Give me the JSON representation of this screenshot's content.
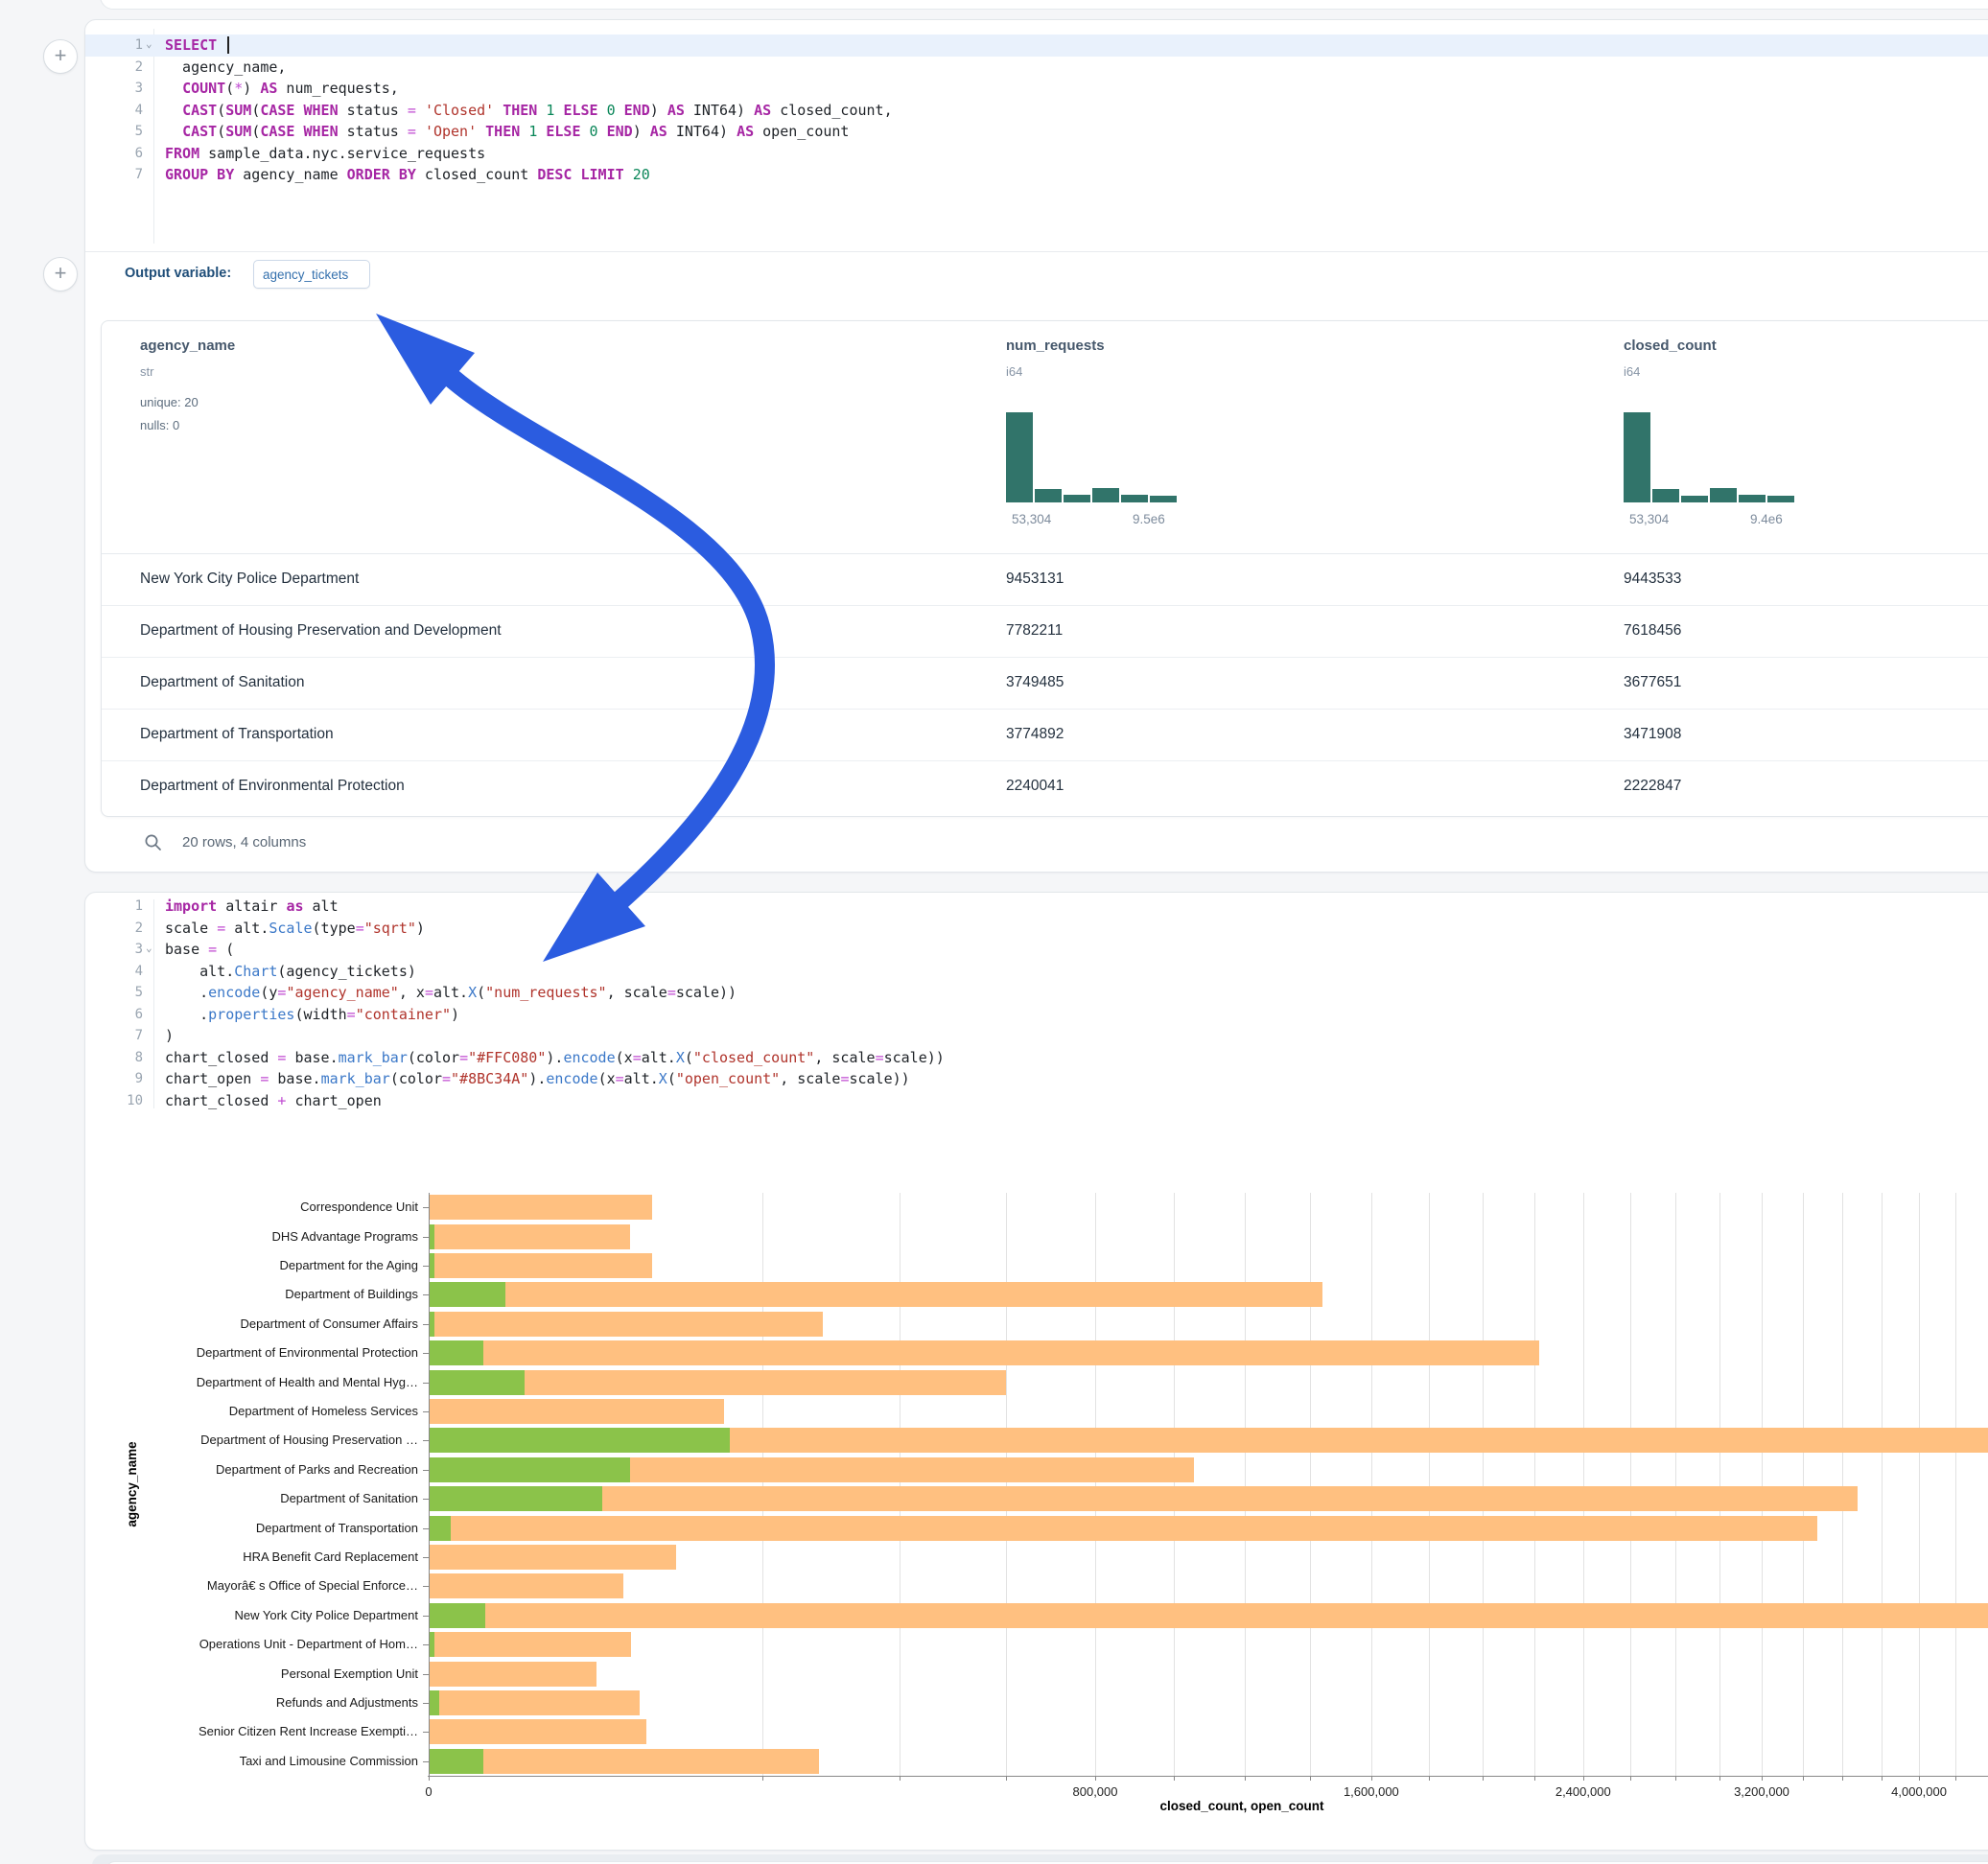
{
  "icons": {
    "plus": "+",
    "chevron": "⌄",
    "search": "magnifier"
  },
  "sql_cell": {
    "active_line": 1,
    "chevron_lines": [
      1
    ],
    "lines": [
      [
        [
          "k",
          "SELECT"
        ],
        [
          "p",
          " "
        ],
        [
          "caret",
          ""
        ]
      ],
      [
        [
          "p",
          "  agency_name,"
        ]
      ],
      [
        [
          "p",
          "  "
        ],
        [
          "k",
          "COUNT"
        ],
        [
          "p",
          "("
        ],
        [
          "o",
          "*"
        ],
        [
          "p",
          ") "
        ],
        [
          "k",
          "AS"
        ],
        [
          "p",
          " num_requests,"
        ]
      ],
      [
        [
          "p",
          "  "
        ],
        [
          "k",
          "CAST"
        ],
        [
          "p",
          "("
        ],
        [
          "k",
          "SUM"
        ],
        [
          "p",
          "("
        ],
        [
          "k",
          "CASE WHEN"
        ],
        [
          "p",
          " status "
        ],
        [
          "o",
          "="
        ],
        [
          "p",
          " "
        ],
        [
          "s",
          "'Closed'"
        ],
        [
          "p",
          " "
        ],
        [
          "k",
          "THEN"
        ],
        [
          "p",
          " "
        ],
        [
          "n",
          "1"
        ],
        [
          "p",
          " "
        ],
        [
          "k",
          "ELSE"
        ],
        [
          "p",
          " "
        ],
        [
          "n",
          "0"
        ],
        [
          "p",
          " "
        ],
        [
          "k",
          "END"
        ],
        [
          "p",
          ") "
        ],
        [
          "k",
          "AS"
        ],
        [
          "p",
          " INT64) "
        ],
        [
          "k",
          "AS"
        ],
        [
          "p",
          " closed_count,"
        ]
      ],
      [
        [
          "p",
          "  "
        ],
        [
          "k",
          "CAST"
        ],
        [
          "p",
          "("
        ],
        [
          "k",
          "SUM"
        ],
        [
          "p",
          "("
        ],
        [
          "k",
          "CASE WHEN"
        ],
        [
          "p",
          " status "
        ],
        [
          "o",
          "="
        ],
        [
          "p",
          " "
        ],
        [
          "s",
          "'Open'"
        ],
        [
          "p",
          " "
        ],
        [
          "k",
          "THEN"
        ],
        [
          "p",
          " "
        ],
        [
          "n",
          "1"
        ],
        [
          "p",
          " "
        ],
        [
          "k",
          "ELSE"
        ],
        [
          "p",
          " "
        ],
        [
          "n",
          "0"
        ],
        [
          "p",
          " "
        ],
        [
          "k",
          "END"
        ],
        [
          "p",
          ") "
        ],
        [
          "k",
          "AS"
        ],
        [
          "p",
          " INT64) "
        ],
        [
          "k",
          "AS"
        ],
        [
          "p",
          " open_count"
        ]
      ],
      [
        [
          "k",
          "FROM"
        ],
        [
          "p",
          " sample_data.nyc.service_requests"
        ]
      ],
      [
        [
          "k",
          "GROUP BY"
        ],
        [
          "p",
          " agency_name "
        ],
        [
          "k",
          "ORDER BY"
        ],
        [
          "p",
          " closed_count "
        ],
        [
          "k",
          "DESC"
        ],
        [
          "p",
          " "
        ],
        [
          "k",
          "LIMIT"
        ],
        [
          "p",
          " "
        ],
        [
          "n",
          "20"
        ]
      ]
    ],
    "output_variable_label": "Output variable:",
    "output_variable_value": "agency_tickets"
  },
  "table": {
    "columns": [
      {
        "name": "agency_name",
        "type": "str",
        "stats": [
          "unique: 20",
          "nulls: 0"
        ]
      },
      {
        "name": "num_requests",
        "type": "i64",
        "hist": [
          1,
          0.15,
          0.08,
          0.16,
          0.08,
          0.07
        ],
        "min_label": "53,304",
        "max_label": "9.5e6"
      },
      {
        "name": "closed_count",
        "type": "i64",
        "hist": [
          1,
          0.15,
          0.07,
          0.16,
          0.08,
          0.07
        ],
        "min_label": "53,304",
        "max_label": "9.4e6"
      }
    ],
    "rows": [
      [
        "New York City Police Department",
        "9453131",
        "9443533"
      ],
      [
        "Department of Housing Preservation and Development",
        "7782211",
        "7618456"
      ],
      [
        "Department of Sanitation",
        "3749485",
        "3677651"
      ],
      [
        "Department of Transportation",
        "3774892",
        "3471908"
      ],
      [
        "Department of Environmental Protection",
        "2240041",
        "2222847"
      ]
    ],
    "footer": "20 rows, 4 columns"
  },
  "python_cell": {
    "chevron_lines": [
      3
    ],
    "lines": [
      [
        [
          "k",
          "import"
        ],
        [
          "p",
          " altair "
        ],
        [
          "k",
          "as"
        ],
        [
          "p",
          " alt"
        ]
      ],
      [
        [
          "p",
          "scale "
        ],
        [
          "o",
          "="
        ],
        [
          "p",
          " alt."
        ],
        [
          "f",
          "Scale"
        ],
        [
          "p",
          "(type"
        ],
        [
          "o",
          "="
        ],
        [
          "s",
          "\"sqrt\""
        ],
        [
          "p",
          ")"
        ]
      ],
      [
        [
          "p",
          "base "
        ],
        [
          "o",
          "="
        ],
        [
          "p",
          " ("
        ]
      ],
      [
        [
          "p",
          "    alt."
        ],
        [
          "f",
          "Chart"
        ],
        [
          "p",
          "(agency_tickets)"
        ]
      ],
      [
        [
          "p",
          "    ."
        ],
        [
          "f",
          "encode"
        ],
        [
          "p",
          "(y"
        ],
        [
          "o",
          "="
        ],
        [
          "s",
          "\"agency_name\""
        ],
        [
          "p",
          ", x"
        ],
        [
          "o",
          "="
        ],
        [
          "p",
          "alt."
        ],
        [
          "f",
          "X"
        ],
        [
          "p",
          "("
        ],
        [
          "s",
          "\"num_requests\""
        ],
        [
          "p",
          ", scale"
        ],
        [
          "o",
          "="
        ],
        [
          "p",
          "scale))"
        ]
      ],
      [
        [
          "p",
          "    ."
        ],
        [
          "f",
          "properties"
        ],
        [
          "p",
          "(width"
        ],
        [
          "o",
          "="
        ],
        [
          "s",
          "\"container\""
        ],
        [
          "p",
          ")"
        ]
      ],
      [
        [
          "p",
          ")"
        ]
      ],
      [
        [
          "p",
          "chart_closed "
        ],
        [
          "o",
          "="
        ],
        [
          "p",
          " base."
        ],
        [
          "f",
          "mark_bar"
        ],
        [
          "p",
          "(color"
        ],
        [
          "o",
          "="
        ],
        [
          "s",
          "\"#FFC080\""
        ],
        [
          "p",
          ")."
        ],
        [
          "f",
          "encode"
        ],
        [
          "p",
          "(x"
        ],
        [
          "o",
          "="
        ],
        [
          "p",
          "alt."
        ],
        [
          "f",
          "X"
        ],
        [
          "p",
          "("
        ],
        [
          "s",
          "\"closed_count\""
        ],
        [
          "p",
          ", scale"
        ],
        [
          "o",
          "="
        ],
        [
          "p",
          "scale))"
        ]
      ],
      [
        [
          "p",
          "chart_open "
        ],
        [
          "o",
          "="
        ],
        [
          "p",
          " base."
        ],
        [
          "f",
          "mark_bar"
        ],
        [
          "p",
          "(color"
        ],
        [
          "o",
          "="
        ],
        [
          "s",
          "\"#8BC34A\""
        ],
        [
          "p",
          ")."
        ],
        [
          "f",
          "encode"
        ],
        [
          "p",
          "(x"
        ],
        [
          "o",
          "="
        ],
        [
          "p",
          "alt."
        ],
        [
          "f",
          "X"
        ],
        [
          "p",
          "("
        ],
        [
          "s",
          "\"open_count\""
        ],
        [
          "p",
          ", scale"
        ],
        [
          "o",
          "="
        ],
        [
          "p",
          "scale))"
        ]
      ],
      [
        [
          "p",
          "chart_closed "
        ],
        [
          "o",
          "+"
        ],
        [
          "p",
          " chart_open"
        ]
      ]
    ]
  },
  "chart_data": {
    "type": "bar",
    "orientation": "horizontal",
    "x_scale": "sqrt",
    "title": "",
    "xlabel": "closed_count, open_count",
    "ylabel": "agency_name",
    "x_ticks_labeled": [
      0,
      800000,
      1600000,
      2400000,
      3200000,
      4000000
    ],
    "grid_step": 200000,
    "grid_max": 5400000,
    "legend": "none",
    "categories": [
      "Correspondence Unit",
      "DHS Advantage Programs",
      "Department for the Aging",
      "Department of Buildings",
      "Department of Consumer Affairs",
      "Department of Environmental Protection",
      "Department of Health and Mental Hyg…",
      "Department of Homeless Services",
      "Department of Housing Preservation …",
      "Department of Parks and Recreation",
      "Department of Sanitation",
      "Department of Transportation",
      "HRA Benefit Card Replacement",
      "Mayorâ€ s Office of Special Enforce…",
      "New York City Police Department",
      "Operations Unit - Department of Hom…",
      "Personal Exemption Unit",
      "Refunds and Adjustments",
      "Senior Citizen Rent Increase Exempti…",
      "Taxi and Limousine Commission"
    ],
    "series": [
      {
        "name": "closed_count",
        "color": "#FFC080",
        "values": [
          90000,
          73000,
          90000,
          1440000,
          280000,
          2222847,
          600000,
          157000,
          7618456,
          1055000,
          3677651,
          3471908,
          110000,
          68000,
          9443533,
          74000,
          51000,
          80000,
          85000,
          274000
        ]
      },
      {
        "name": "open_count",
        "color": "#8BC34A",
        "values": [
          0,
          60,
          60,
          10600,
          60,
          5300,
          16600,
          0,
          163755,
          73000,
          54000,
          900,
          0,
          0,
          5800,
          60,
          0,
          200,
          0,
          5300
        ]
      }
    ]
  },
  "annotation": {
    "arrow_color": "#2b5ce0"
  }
}
